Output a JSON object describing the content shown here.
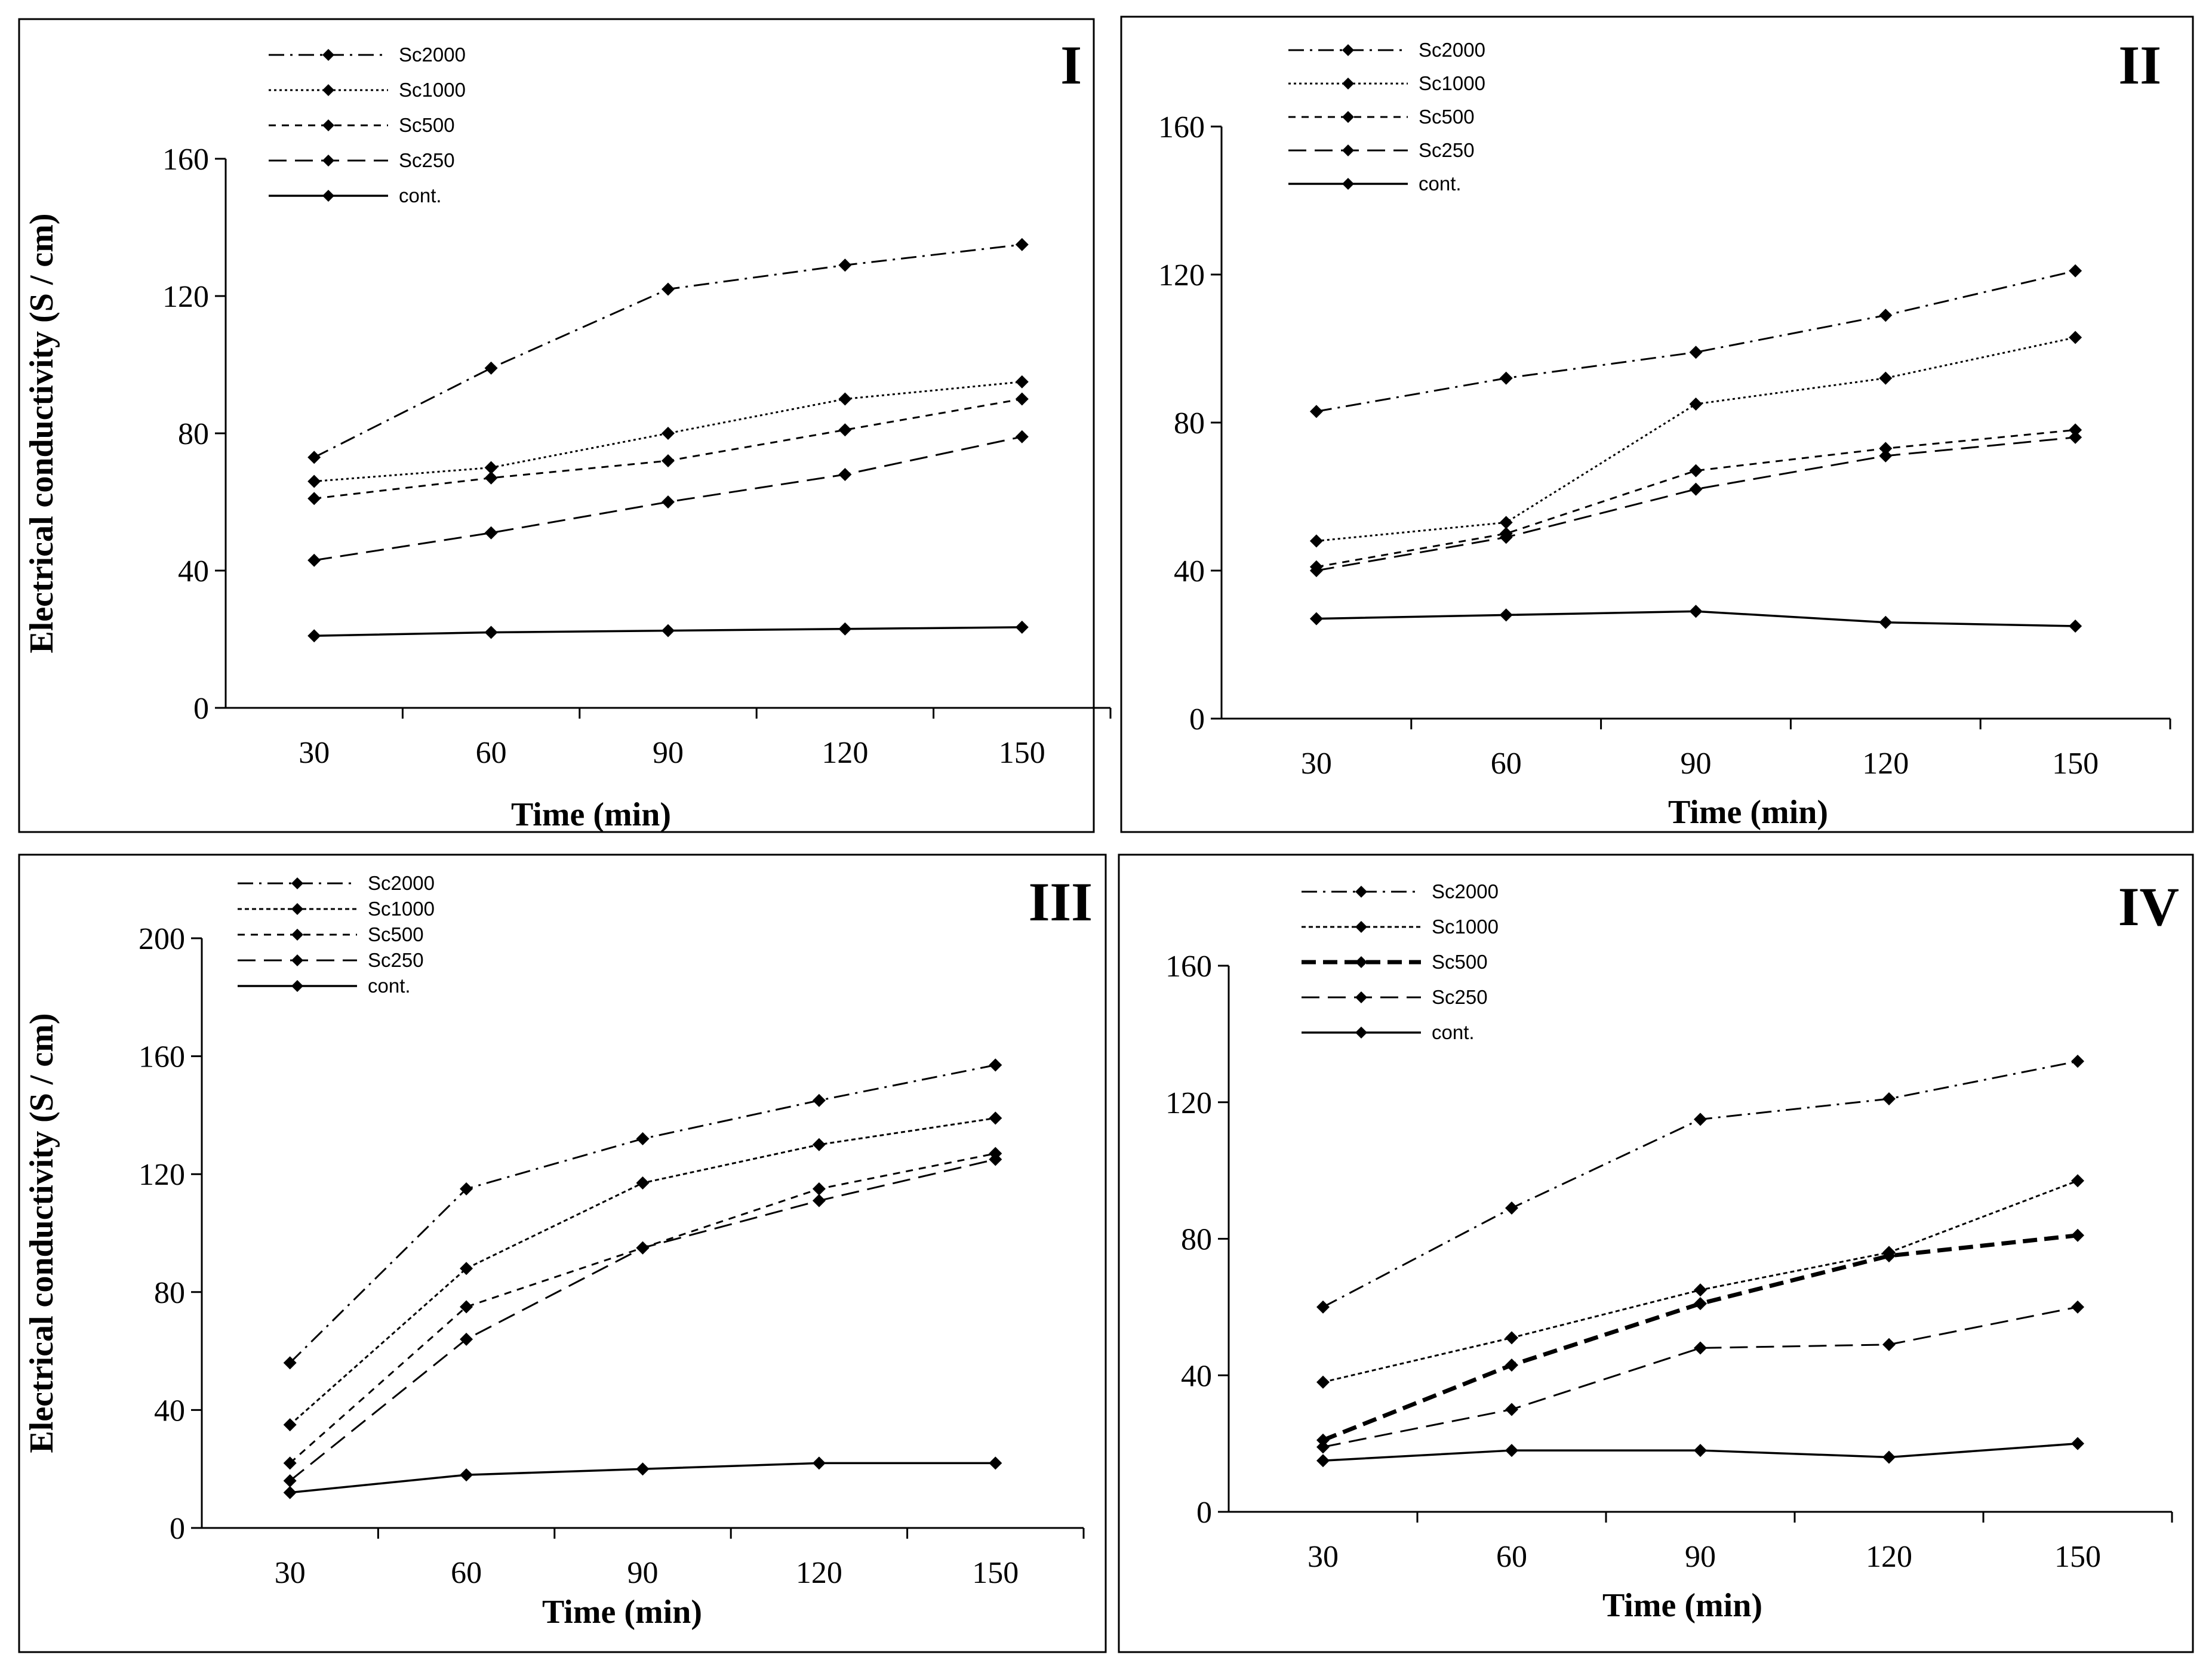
{
  "colors": {
    "ink": "#000000",
    "background": "#ffffff"
  },
  "chart_data": [
    {
      "type": "line",
      "panel_label": "I",
      "xlabel": "Time (min)",
      "ylabel": "Electrical conductivity (S / cm)",
      "categories": [
        30,
        60,
        90,
        120,
        150
      ],
      "x_tick_labels": [
        "30",
        "60",
        "90",
        "120",
        "150"
      ],
      "yticks": [
        0,
        40,
        80,
        120,
        160
      ],
      "y_tick_labels": [
        "0",
        "40",
        "80",
        "120",
        "160"
      ],
      "ylim": [
        0,
        160
      ],
      "grid": false,
      "legend_position": "top-left",
      "series": [
        {
          "name": "Sc2000",
          "style": "dash-dot",
          "values": [
            73,
            99,
            122,
            129,
            135
          ]
        },
        {
          "name": "Sc1000",
          "style": "dotted",
          "values": [
            66,
            70,
            80,
            90,
            95
          ]
        },
        {
          "name": "Sc500",
          "style": "short-dash",
          "values": [
            61,
            67,
            72,
            81,
            90
          ]
        },
        {
          "name": "Sc250",
          "style": "long-dash",
          "values": [
            43,
            51,
            60,
            68,
            79
          ]
        },
        {
          "name": "cont.",
          "style": "solid",
          "values": [
            21,
            22,
            22.5,
            23,
            23.5
          ]
        }
      ]
    },
    {
      "type": "line",
      "panel_label": "II",
      "xlabel": "Time (min)",
      "ylabel": "",
      "categories": [
        30,
        60,
        90,
        120,
        150
      ],
      "x_tick_labels": [
        "30",
        "60",
        "90",
        "120",
        "150"
      ],
      "yticks": [
        0,
        40,
        80,
        120,
        160
      ],
      "y_tick_labels": [
        "0",
        "40",
        "80",
        "120",
        "160"
      ],
      "ylim": [
        0,
        160
      ],
      "grid": false,
      "legend_position": "top-left",
      "series": [
        {
          "name": "Sc2000",
          "style": "dash-dot",
          "values": [
            83,
            92,
            99,
            109,
            121
          ]
        },
        {
          "name": "Sc1000",
          "style": "dotted",
          "values": [
            48,
            53,
            85,
            92,
            103
          ]
        },
        {
          "name": "Sc500",
          "style": "short-dash",
          "values": [
            41,
            50,
            67,
            73,
            78
          ]
        },
        {
          "name": "Sc250",
          "style": "long-dash",
          "values": [
            40,
            49,
            62,
            71,
            76
          ]
        },
        {
          "name": "cont.",
          "style": "solid",
          "values": [
            27,
            28,
            29,
            26,
            25
          ]
        }
      ]
    },
    {
      "type": "line",
      "panel_label": "III",
      "xlabel": "Time (min)",
      "ylabel": "Electrical conductivity (S / cm)",
      "categories": [
        30,
        60,
        90,
        120,
        150
      ],
      "x_tick_labels": [
        "30",
        "60",
        "90",
        "120",
        "150"
      ],
      "yticks": [
        0,
        40,
        80,
        120,
        160,
        200
      ],
      "y_tick_labels": [
        "0",
        "40",
        "80",
        "120",
        "160",
        "200"
      ],
      "ylim": [
        0,
        200
      ],
      "grid": false,
      "legend_position": "top-left",
      "series": [
        {
          "name": "Sc2000",
          "style": "dash-dot",
          "values": [
            56,
            115,
            132,
            145,
            157
          ]
        },
        {
          "name": "Sc1000",
          "style": "fine-dash",
          "values": [
            35,
            88,
            117,
            130,
            139
          ]
        },
        {
          "name": "Sc500",
          "style": "short-dash",
          "values": [
            22,
            75,
            95,
            115,
            127
          ]
        },
        {
          "name": "Sc250",
          "style": "long-dash",
          "values": [
            16,
            64,
            95,
            111,
            125
          ]
        },
        {
          "name": "cont.",
          "style": "solid",
          "values": [
            12,
            18,
            20,
            22,
            22
          ]
        }
      ]
    },
    {
      "type": "line",
      "panel_label": "IV",
      "xlabel": "Time (min)",
      "ylabel": "",
      "categories": [
        30,
        60,
        90,
        120,
        150
      ],
      "x_tick_labels": [
        "30",
        "60",
        "90",
        "120",
        "150"
      ],
      "yticks": [
        0,
        40,
        80,
        120,
        160
      ],
      "y_tick_labels": [
        "0",
        "40",
        "80",
        "120",
        "160"
      ],
      "ylim": [
        0,
        160
      ],
      "grid": false,
      "legend_position": "top-left",
      "series": [
        {
          "name": "Sc2000",
          "style": "dash-dot",
          "values": [
            60,
            89,
            115,
            121,
            132
          ]
        },
        {
          "name": "Sc1000",
          "style": "fine-dash",
          "values": [
            38,
            51,
            65,
            76,
            97
          ]
        },
        {
          "name": "Sc500",
          "style": "bold-dash",
          "values": [
            21,
            43,
            61,
            75,
            81
          ]
        },
        {
          "name": "Sc250",
          "style": "long-dash",
          "values": [
            19,
            30,
            48,
            49,
            60
          ]
        },
        {
          "name": "cont.",
          "style": "solid",
          "values": [
            15,
            18,
            18,
            16,
            20
          ]
        }
      ]
    }
  ]
}
